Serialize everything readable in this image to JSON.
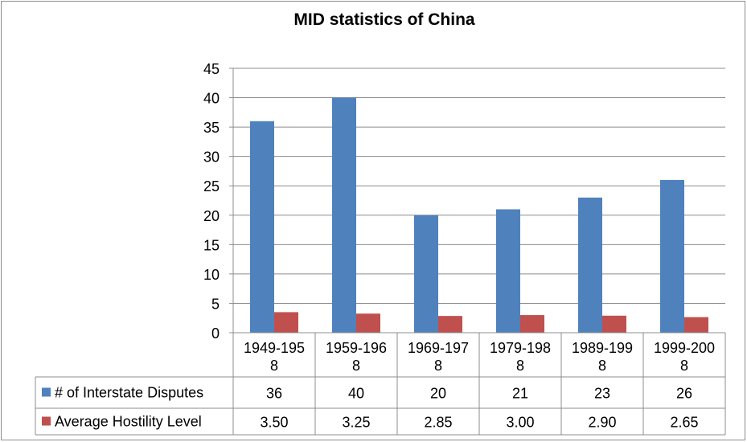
{
  "chart_data": {
    "type": "bar",
    "title": "MID statistics of China",
    "categories": [
      "1949-1958",
      "1959-1968",
      "1969-1978",
      "1979-1988",
      "1989-1998",
      "1999-2008"
    ],
    "category_lines": [
      [
        "1949-195",
        "8"
      ],
      [
        "1959-196",
        "8"
      ],
      [
        "1969-197",
        "8"
      ],
      [
        "1979-198",
        "8"
      ],
      [
        "1989-199",
        "8"
      ],
      [
        "1999-200",
        "8"
      ]
    ],
    "series": [
      {
        "name": "# of Interstate Disputes",
        "color": "#4f81bd",
        "values": [
          36,
          40,
          20,
          21,
          23,
          26
        ],
        "labels": [
          "36",
          "40",
          "20",
          "21",
          "23",
          "26"
        ]
      },
      {
        "name": "Average Hostility Level",
        "color": "#c0504d",
        "values": [
          3.5,
          3.25,
          2.85,
          3.0,
          2.9,
          2.65
        ],
        "labels": [
          "3.50",
          "3.25",
          "2.85",
          "3.00",
          "2.90",
          "2.65"
        ]
      }
    ],
    "ylim": [
      0,
      45
    ],
    "yticks": [
      "0",
      "5",
      "10",
      "15",
      "20",
      "25",
      "30",
      "35",
      "40",
      "45"
    ],
    "grid": true,
    "legend": "data-table",
    "xlabel": "",
    "ylabel": ""
  }
}
